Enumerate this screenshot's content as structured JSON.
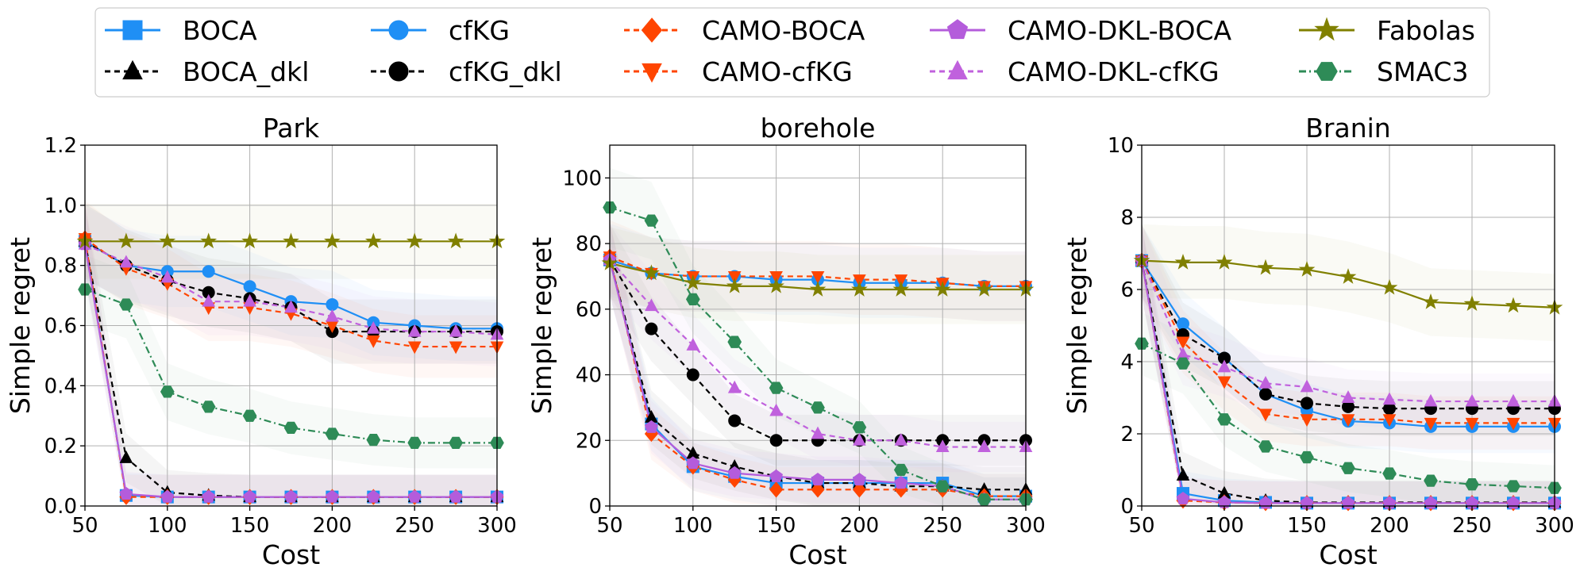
{
  "legend": {
    "location": "top",
    "entries": [
      {
        "label": "BOCA",
        "color": "#1f8ff5",
        "marker": "square",
        "line": "solid"
      },
      {
        "label": "BOCA_dkl",
        "color": "#000000",
        "marker": "triangle-up",
        "line": "dashed"
      },
      {
        "label": "cfKG",
        "color": "#1f8ff5",
        "marker": "circle",
        "line": "solid"
      },
      {
        "label": "cfKG_dkl",
        "color": "#000000",
        "marker": "circle",
        "line": "dashed"
      },
      {
        "label": "CAMO-BOCA",
        "color": "#ff4500",
        "marker": "diamond",
        "line": "dashed"
      },
      {
        "label": "CAMO-cfKG",
        "color": "#ff4500",
        "marker": "triangle-down",
        "line": "dashed"
      },
      {
        "label": "CAMO-DKL-BOCA",
        "color": "#b45cdb",
        "marker": "pentagon",
        "line": "solid"
      },
      {
        "label": "CAMO-DKL-cfKG",
        "color": "#c061dd",
        "marker": "triangle-up",
        "line": "dashed"
      },
      {
        "label": "Fabolas",
        "color": "#808000",
        "marker": "star",
        "line": "solid"
      },
      {
        "label": "SMAC3",
        "color": "#2e8b57",
        "marker": "hexagon",
        "line": "dashdot"
      }
    ]
  },
  "chart_data": [
    {
      "type": "line",
      "title": "Park",
      "xlabel": "Cost",
      "ylabel": "Simple regret",
      "xlim": [
        50,
        300
      ],
      "ylim": [
        0,
        1.2
      ],
      "xticks": [
        50,
        100,
        150,
        200,
        250,
        300
      ],
      "yticks": [
        0.0,
        0.2,
        0.4,
        0.6,
        0.8,
        1.0,
        1.2
      ],
      "ytick_labels": [
        "0.0",
        "0.2",
        "0.4",
        "0.6",
        "0.8",
        "1.0",
        "1.2"
      ],
      "grid": true,
      "x": [
        50,
        75,
        100,
        125,
        150,
        175,
        200,
        225,
        250,
        275,
        300
      ],
      "series": [
        {
          "name": "BOCA",
          "values": [
            0.88,
            0.035,
            0.03,
            0.03,
            0.03,
            0.03,
            0.03,
            0.03,
            0.03,
            0.03,
            0.03
          ]
        },
        {
          "name": "BOCA_dkl",
          "values": [
            0.88,
            0.16,
            0.045,
            0.035,
            0.03,
            0.03,
            0.03,
            0.03,
            0.03,
            0.03,
            0.03
          ]
        },
        {
          "name": "cfKG",
          "values": [
            0.88,
            0.8,
            0.78,
            0.78,
            0.73,
            0.68,
            0.67,
            0.61,
            0.6,
            0.59,
            0.59
          ]
        },
        {
          "name": "cfKG_dkl",
          "values": [
            0.88,
            0.8,
            0.75,
            0.71,
            0.69,
            0.66,
            0.58,
            0.58,
            0.58,
            0.58,
            0.58
          ]
        },
        {
          "name": "CAMO-BOCA",
          "values": [
            0.89,
            0.03,
            0.03,
            0.03,
            0.03,
            0.03,
            0.03,
            0.03,
            0.03,
            0.03,
            0.03
          ]
        },
        {
          "name": "CAMO-cfKG",
          "values": [
            0.89,
            0.79,
            0.74,
            0.66,
            0.66,
            0.64,
            0.6,
            0.55,
            0.53,
            0.53,
            0.53
          ]
        },
        {
          "name": "CAMO-DKL-BOCA",
          "values": [
            0.87,
            0.04,
            0.03,
            0.03,
            0.03,
            0.03,
            0.03,
            0.03,
            0.03,
            0.03,
            0.03
          ]
        },
        {
          "name": "CAMO-DKL-cfKG",
          "values": [
            0.87,
            0.81,
            0.76,
            0.68,
            0.68,
            0.66,
            0.63,
            0.59,
            0.58,
            0.58,
            0.57
          ]
        },
        {
          "name": "Fabolas",
          "values": [
            0.88,
            0.88,
            0.88,
            0.88,
            0.88,
            0.88,
            0.88,
            0.88,
            0.88,
            0.88,
            0.88
          ]
        },
        {
          "name": "SMAC3",
          "values": [
            0.72,
            0.67,
            0.38,
            0.33,
            0.3,
            0.26,
            0.24,
            0.22,
            0.21,
            0.21,
            0.21
          ]
        }
      ]
    },
    {
      "type": "line",
      "title": "borehole",
      "xlabel": "Cost",
      "ylabel": "Simple regret",
      "xlim": [
        50,
        300
      ],
      "ylim": [
        0,
        110
      ],
      "xticks": [
        50,
        100,
        150,
        200,
        250,
        300
      ],
      "yticks": [
        0,
        20,
        40,
        60,
        80,
        100
      ],
      "ytick_labels": [
        "0",
        "20",
        "40",
        "60",
        "80",
        "100"
      ],
      "grid": true,
      "x": [
        50,
        75,
        100,
        125,
        150,
        175,
        200,
        225,
        250,
        275,
        300
      ],
      "series": [
        {
          "name": "BOCA",
          "values": [
            75,
            25,
            12,
            9,
            7,
            7,
            7,
            7,
            7,
            3,
            3
          ]
        },
        {
          "name": "BOCA_dkl",
          "values": [
            75,
            27,
            16,
            12,
            9,
            7,
            7,
            6,
            6,
            5,
            5
          ]
        },
        {
          "name": "cfKG",
          "values": [
            75,
            71,
            70,
            70,
            69,
            69,
            68,
            68,
            68,
            67,
            67
          ]
        },
        {
          "name": "cfKG_dkl",
          "values": [
            75,
            54,
            40,
            26,
            20,
            20,
            20,
            20,
            20,
            20,
            20
          ]
        },
        {
          "name": "CAMO-BOCA",
          "values": [
            76,
            22,
            12,
            8,
            5,
            5,
            5,
            5,
            5,
            3,
            3
          ]
        },
        {
          "name": "CAMO-cfKG",
          "values": [
            76,
            71,
            70,
            70,
            70,
            70,
            69,
            69,
            68,
            67,
            67
          ]
        },
        {
          "name": "CAMO-DKL-BOCA",
          "values": [
            75,
            24,
            13,
            10,
            9,
            8,
            8,
            7,
            6,
            2,
            2
          ]
        },
        {
          "name": "CAMO-DKL-cfKG",
          "values": [
            75,
            61,
            49,
            36,
            29,
            22,
            20,
            20,
            18,
            18,
            18
          ]
        },
        {
          "name": "Fabolas",
          "values": [
            74,
            71,
            68,
            67,
            67,
            66,
            66,
            66,
            66,
            66,
            66
          ]
        },
        {
          "name": "SMAC3",
          "values": [
            91,
            87,
            63,
            50,
            36,
            30,
            24,
            11,
            6,
            2,
            2
          ]
        }
      ]
    },
    {
      "type": "line",
      "title": "Branin",
      "xlabel": "Cost",
      "ylabel": "Simple regret",
      "xlim": [
        50,
        300
      ],
      "ylim": [
        0,
        10
      ],
      "xticks": [
        50,
        100,
        150,
        200,
        250,
        300
      ],
      "yticks": [
        0,
        2,
        4,
        6,
        8,
        10
      ],
      "ytick_labels": [
        "0",
        "2",
        "4",
        "6",
        "8",
        "10"
      ],
      "grid": true,
      "x": [
        50,
        75,
        100,
        125,
        150,
        175,
        200,
        225,
        250,
        275,
        300
      ],
      "series": [
        {
          "name": "BOCA",
          "values": [
            6.8,
            0.35,
            0.15,
            0.1,
            0.08,
            0.08,
            0.08,
            0.08,
            0.08,
            0.08,
            0.08
          ]
        },
        {
          "name": "BOCA_dkl",
          "values": [
            6.8,
            0.85,
            0.35,
            0.15,
            0.1,
            0.1,
            0.1,
            0.1,
            0.1,
            0.1,
            0.1
          ]
        },
        {
          "name": "cfKG",
          "values": [
            6.8,
            5.05,
            4.1,
            3.1,
            2.65,
            2.35,
            2.3,
            2.2,
            2.2,
            2.2,
            2.2
          ]
        },
        {
          "name": "cfKG_dkl",
          "values": [
            6.8,
            4.75,
            4.1,
            3.1,
            2.85,
            2.75,
            2.7,
            2.7,
            2.7,
            2.7,
            2.7
          ]
        },
        {
          "name": "CAMO-BOCA",
          "values": [
            6.8,
            0.15,
            0.1,
            0.08,
            0.08,
            0.08,
            0.08,
            0.08,
            0.08,
            0.08,
            0.08
          ]
        },
        {
          "name": "CAMO-cfKG",
          "values": [
            6.8,
            4.55,
            3.45,
            2.55,
            2.4,
            2.4,
            2.4,
            2.3,
            2.3,
            2.3,
            2.3
          ]
        },
        {
          "name": "CAMO-DKL-BOCA",
          "values": [
            6.8,
            0.2,
            0.1,
            0.08,
            0.08,
            0.08,
            0.08,
            0.08,
            0.08,
            0.08,
            0.08
          ]
        },
        {
          "name": "CAMO-DKL-cfKG",
          "values": [
            6.8,
            4.2,
            3.85,
            3.4,
            3.3,
            3.0,
            2.95,
            2.9,
            2.9,
            2.9,
            2.9
          ]
        },
        {
          "name": "Fabolas",
          "values": [
            6.8,
            6.75,
            6.75,
            6.6,
            6.55,
            6.35,
            6.05,
            5.65,
            5.6,
            5.55,
            5.5
          ]
        },
        {
          "name": "SMAC3",
          "values": [
            4.5,
            3.95,
            2.4,
            1.65,
            1.35,
            1.05,
            0.9,
            0.7,
            0.6,
            0.55,
            0.5
          ]
        }
      ]
    }
  ]
}
